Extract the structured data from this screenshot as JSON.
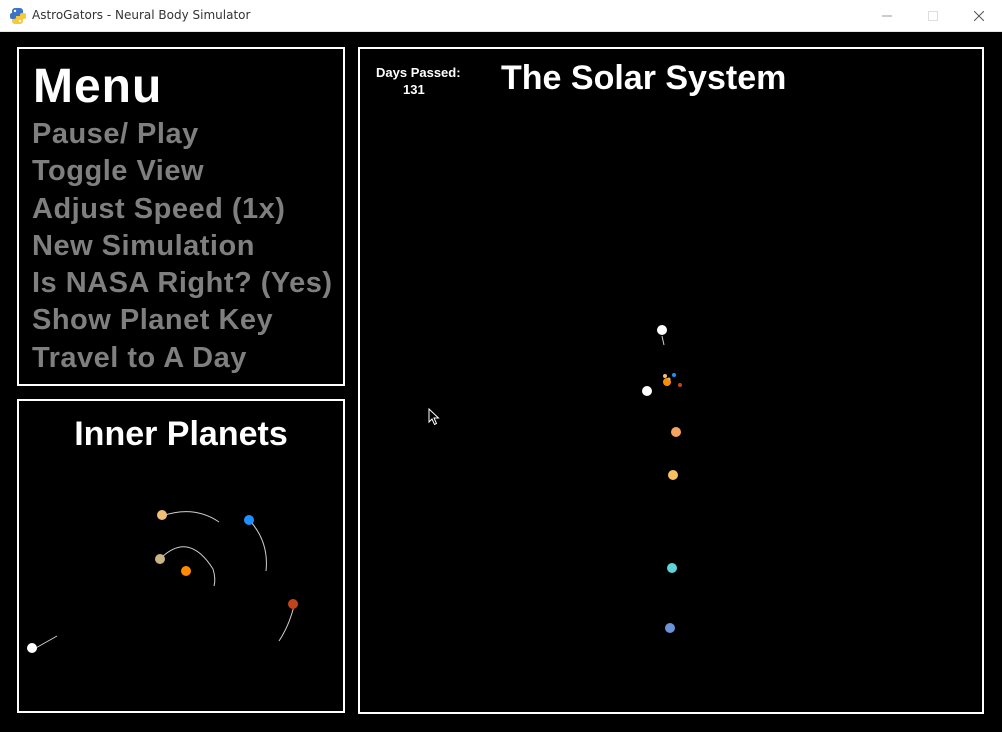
{
  "window": {
    "title": "AstroGators - Neural Body Simulator"
  },
  "menu": {
    "title": "Menu",
    "items": [
      {
        "label": "Pause/ Play"
      },
      {
        "label": "Toggle View"
      },
      {
        "label": "Adjust Speed (1x)"
      },
      {
        "label": "New Simulation"
      },
      {
        "label": "Is NASA Right? (Yes)"
      },
      {
        "label": "Show Planet Key"
      },
      {
        "label": "Travel to A Day"
      }
    ]
  },
  "inner_panel": {
    "title": "Inner Planets"
  },
  "solar_panel": {
    "title": "The Solar System",
    "days_label": "Days Passed:",
    "days_value": "131"
  },
  "colors": {
    "background": "#000000",
    "menu_text": "#7f7f7f",
    "sun": "#ff8c00",
    "mercury": "#c8b484",
    "venus": "#f0c078",
    "earth": "#1e90ff",
    "mars": "#c0441a",
    "comet": "#ffffff",
    "jupiter": "#f4a460",
    "saturn": "#f8c060",
    "uranus": "#5fd4d8",
    "neptune": "#6b93d6"
  },
  "icons": {
    "app": "python-icon",
    "minimize": "minimize-icon",
    "maximize": "maximize-icon",
    "close": "close-icon",
    "cursor": "mouse-cursor-icon"
  }
}
